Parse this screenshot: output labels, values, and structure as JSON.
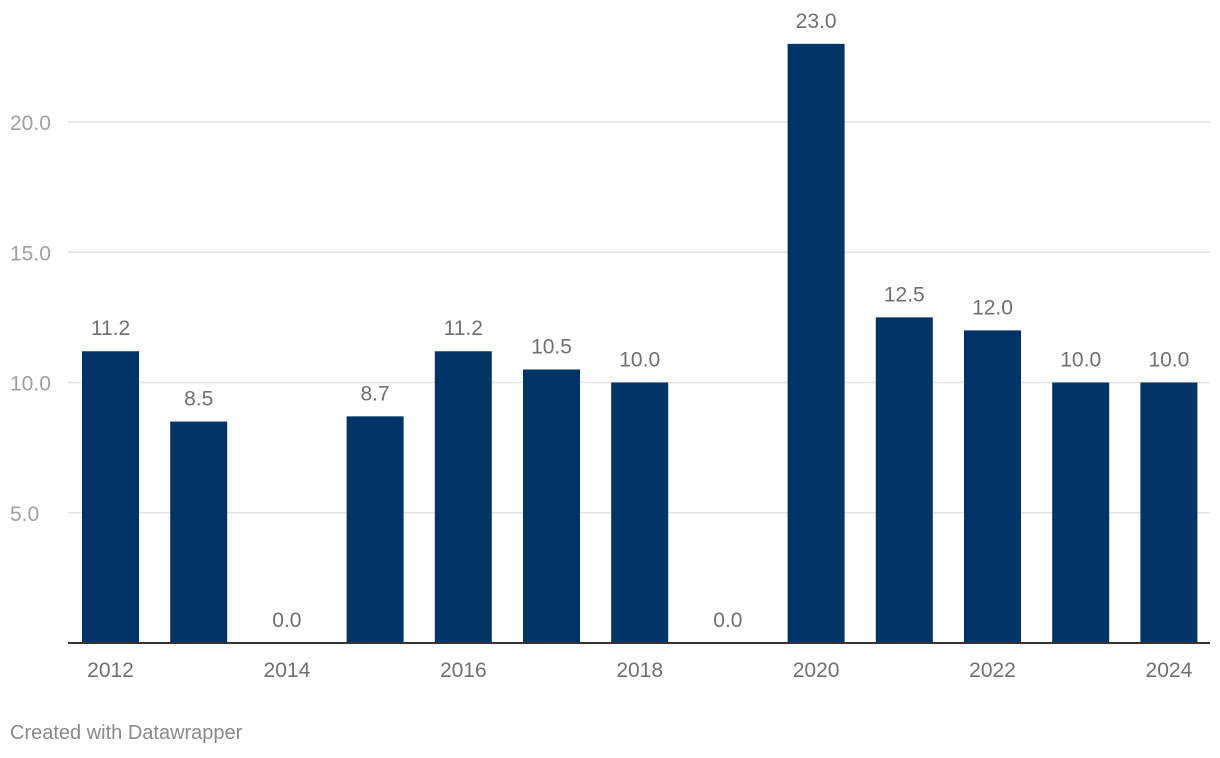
{
  "chart_data": {
    "type": "bar",
    "categories": [
      "2012",
      "2013",
      "2014",
      "2015",
      "2016",
      "2017",
      "2018",
      "2019",
      "2020",
      "2021",
      "2022",
      "2023",
      "2024"
    ],
    "values": [
      11.2,
      8.5,
      0.0,
      8.7,
      11.2,
      10.5,
      10.0,
      0.0,
      23.0,
      12.5,
      12.0,
      10.0,
      10.0
    ],
    "data_labels": [
      "11.2",
      "8.5",
      "0.0",
      "8.7",
      "11.2",
      "10.5",
      "10.0",
      "0.0",
      "23.0",
      "12.5",
      "12.0",
      "10.0",
      "10.0"
    ],
    "x_tick_labels": [
      "2012",
      "",
      "2014",
      "",
      "2016",
      "",
      "2018",
      "",
      "2020",
      "",
      "2022",
      "",
      "2024"
    ],
    "y_ticks": [
      5,
      10,
      15,
      20
    ],
    "y_tick_labels": [
      "5.0",
      "10.0",
      "15.0",
      "20.0"
    ],
    "ylim": [
      0,
      23
    ],
    "grid": true,
    "bar_color": "#003366",
    "title": "",
    "xlabel": "",
    "ylabel": ""
  },
  "footer": {
    "credit": "Created with Datawrapper"
  }
}
